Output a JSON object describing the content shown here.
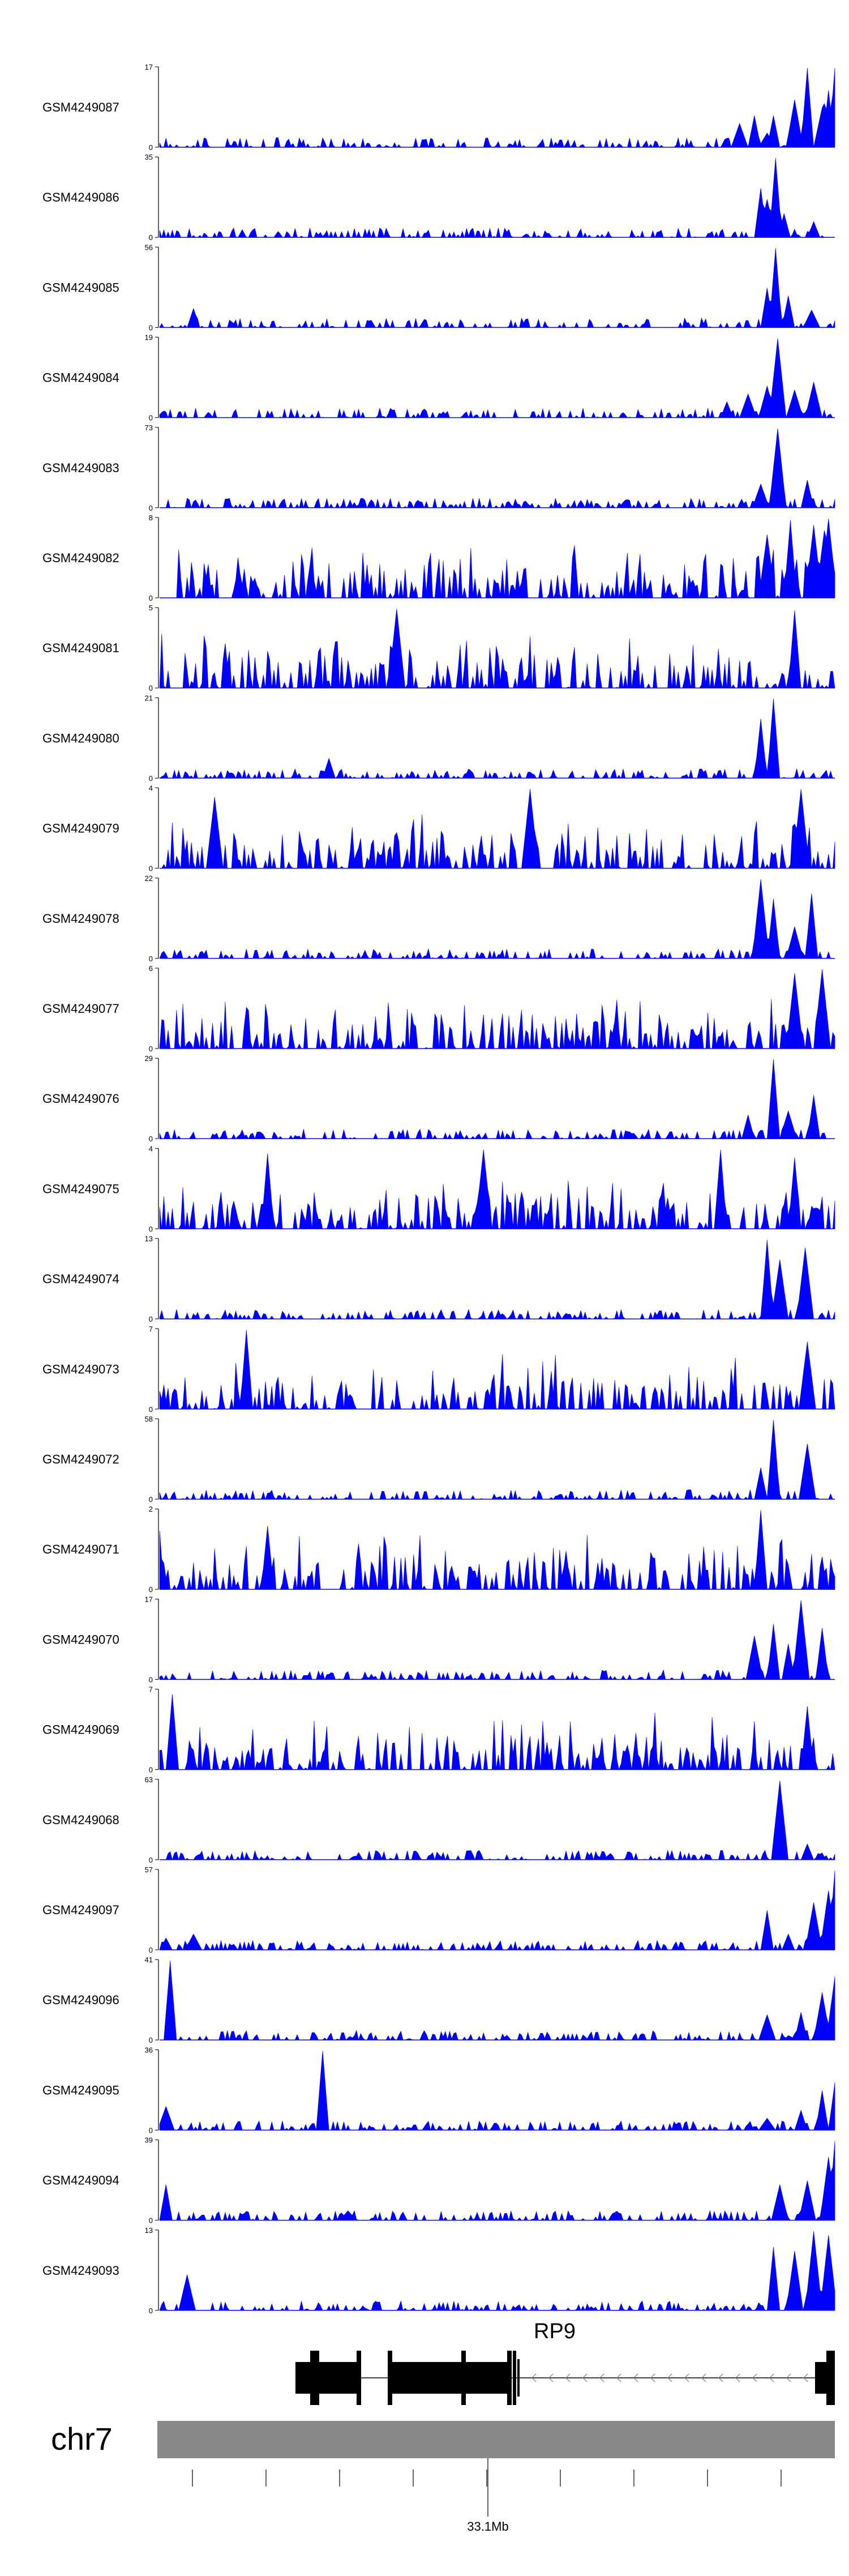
{
  "chart_data": {
    "type": "area",
    "genome": "chr7",
    "colors": {
      "signal": "#0000ff",
      "gene": "#000000",
      "chrom": "#888888",
      "axis": "#666666"
    },
    "tracks": [
      {
        "name": "GSM4249087",
        "ymax": "17",
        "ymin": "0",
        "peaks": [
          [
            0.86,
            0.3
          ],
          [
            0.88,
            0.4
          ],
          [
            0.9,
            0.18
          ],
          [
            0.91,
            0.4
          ],
          [
            0.94,
            0.6
          ],
          [
            0.96,
            1.0
          ],
          [
            0.98,
            0.5
          ],
          [
            0.983,
            0.55
          ],
          [
            0.99,
            0.72
          ],
          [
            1.0,
            1.0
          ]
        ]
      },
      {
        "name": "GSM4249086",
        "ymax": "35",
        "ymin": "0",
        "peaks": [
          [
            0.89,
            0.62
          ],
          [
            0.9,
            0.48
          ],
          [
            0.912,
            1.0
          ],
          [
            0.925,
            0.3
          ],
          [
            0.97,
            0.2
          ]
        ]
      },
      {
        "name": "GSM4249085",
        "ymax": "56",
        "ymin": "0",
        "peaks": [
          [
            0.05,
            0.24
          ],
          [
            0.9,
            0.5
          ],
          [
            0.913,
            1.0
          ],
          [
            0.93,
            0.4
          ],
          [
            0.965,
            0.22
          ]
        ]
      },
      {
        "name": "GSM4249084",
        "ymax": "19",
        "ymin": "0",
        "peaks": [
          [
            0.84,
            0.2
          ],
          [
            0.87,
            0.3
          ],
          [
            0.9,
            0.4
          ],
          [
            0.916,
            1.0
          ],
          [
            0.94,
            0.35
          ],
          [
            0.97,
            0.45
          ]
        ]
      },
      {
        "name": "GSM4249083",
        "ymax": "73",
        "ymin": "0",
        "peaks": [
          [
            0.89,
            0.3
          ],
          [
            0.915,
            1.0
          ],
          [
            0.96,
            0.35
          ]
        ]
      },
      {
        "name": "GSM4249082",
        "ymax": "8",
        "ymin": "0",
        "peaks": [
          [
            0.9,
            0.8
          ],
          [
            0.935,
            0.98
          ],
          [
            0.97,
            0.92
          ],
          [
            0.985,
            0.85
          ],
          [
            0.99,
            1.0
          ]
        ]
      },
      {
        "name": "GSM4249081",
        "ymax": "5",
        "ymin": "0",
        "peaks": [
          [
            0.35,
            1.0
          ],
          [
            0.94,
            0.98
          ]
        ]
      },
      {
        "name": "GSM4249080",
        "ymax": "21",
        "ymin": "0",
        "peaks": [
          [
            0.25,
            0.25
          ],
          [
            0.89,
            0.75
          ],
          [
            0.91,
            1.0
          ]
        ]
      },
      {
        "name": "GSM4249079",
        "ymax": "4",
        "ymin": "0",
        "peaks": [
          [
            0.08,
            0.9
          ],
          [
            0.55,
            1.0
          ],
          [
            0.95,
            1.0
          ]
        ]
      },
      {
        "name": "GSM4249078",
        "ymax": "22",
        "ymin": "0",
        "peaks": [
          [
            0.89,
            1.0
          ],
          [
            0.91,
            0.75
          ],
          [
            0.94,
            0.4
          ],
          [
            0.965,
            0.82
          ]
        ]
      },
      {
        "name": "GSM4249077",
        "ymax": "6",
        "ymin": "0",
        "peaks": [
          [
            0.94,
            0.95
          ],
          [
            0.98,
            1.0
          ]
        ]
      },
      {
        "name": "GSM4249076",
        "ymax": "29",
        "ymin": "0",
        "peaks": [
          [
            0.87,
            0.3
          ],
          [
            0.91,
            1.0
          ],
          [
            0.93,
            0.35
          ],
          [
            0.97,
            0.55
          ]
        ]
      },
      {
        "name": "GSM4249075",
        "ymax": "4",
        "ymin": "0",
        "peaks": [
          [
            0.16,
            0.95
          ],
          [
            0.48,
            1.0
          ],
          [
            0.83,
            1.0
          ],
          [
            0.94,
            0.9
          ]
        ]
      },
      {
        "name": "GSM4249074",
        "ymax": "13",
        "ymin": "0",
        "peaks": [
          [
            0.9,
            1.0
          ],
          [
            0.92,
            0.75
          ],
          [
            0.955,
            0.9
          ]
        ]
      },
      {
        "name": "GSM4249073",
        "ymax": "7",
        "ymin": "0",
        "peaks": [
          [
            0.13,
            1.0
          ],
          [
            0.96,
            0.85
          ]
        ]
      },
      {
        "name": "GSM4249072",
        "ymax": "58",
        "ymin": "0",
        "peaks": [
          [
            0.89,
            0.4
          ],
          [
            0.91,
            1.0
          ],
          [
            0.96,
            0.7
          ]
        ]
      },
      {
        "name": "GSM4249071",
        "ymax": "2",
        "ymin": "0",
        "peaks": [
          [
            0.16,
            0.8
          ],
          [
            0.89,
            1.0
          ]
        ]
      },
      {
        "name": "GSM4249070",
        "ymax": "17",
        "ymin": "0",
        "peaks": [
          [
            0.88,
            0.55
          ],
          [
            0.91,
            0.7
          ],
          [
            0.93,
            0.45
          ],
          [
            0.95,
            1.0
          ],
          [
            0.98,
            0.65
          ]
        ]
      },
      {
        "name": "GSM4249069",
        "ymax": "7",
        "ymin": "0",
        "peaks": [
          [
            0.02,
            0.95
          ],
          [
            0.96,
            0.8
          ]
        ]
      },
      {
        "name": "GSM4249068",
        "ymax": "63",
        "ymin": "0",
        "peaks": [
          [
            0.92,
            1.0
          ],
          [
            0.96,
            0.2
          ]
        ]
      },
      {
        "name": "GSM4249097",
        "ymax": "57",
        "ymin": "0",
        "peaks": [
          [
            0.01,
            0.15
          ],
          [
            0.05,
            0.2
          ],
          [
            0.9,
            0.5
          ],
          [
            0.93,
            0.2
          ],
          [
            0.97,
            0.6
          ],
          [
            0.99,
            0.75
          ],
          [
            1.0,
            1.0
          ]
        ]
      },
      {
        "name": "GSM4249096",
        "ymax": "41",
        "ymin": "0",
        "peaks": [
          [
            0.015,
            1.0
          ],
          [
            0.9,
            0.32
          ],
          [
            0.95,
            0.35
          ],
          [
            0.98,
            0.6
          ],
          [
            1.0,
            0.8
          ]
        ]
      },
      {
        "name": "GSM4249095",
        "ymax": "36",
        "ymin": "0",
        "peaks": [
          [
            0.01,
            0.3
          ],
          [
            0.24,
            1.0
          ],
          [
            0.9,
            0.15
          ],
          [
            0.95,
            0.25
          ],
          [
            0.98,
            0.5
          ],
          [
            1.0,
            0.6
          ]
        ]
      },
      {
        "name": "GSM4249094",
        "ymax": "39",
        "ymin": "0",
        "peaks": [
          [
            0.01,
            0.45
          ],
          [
            0.28,
            0.12
          ],
          [
            0.92,
            0.45
          ],
          [
            0.96,
            0.5
          ],
          [
            0.99,
            0.8
          ],
          [
            1.0,
            1.0
          ]
        ]
      },
      {
        "name": "GSM4249093",
        "ymax": "13",
        "ymin": "0",
        "peaks": [
          [
            0.04,
            0.45
          ],
          [
            0.91,
            0.8
          ],
          [
            0.94,
            0.75
          ],
          [
            0.97,
            1.0
          ],
          [
            0.99,
            0.95
          ]
        ]
      }
    ],
    "gene": {
      "name": "RP9"
    },
    "chromosome": {
      "label": "chr7",
      "tick_label": "33.1Mb"
    }
  }
}
